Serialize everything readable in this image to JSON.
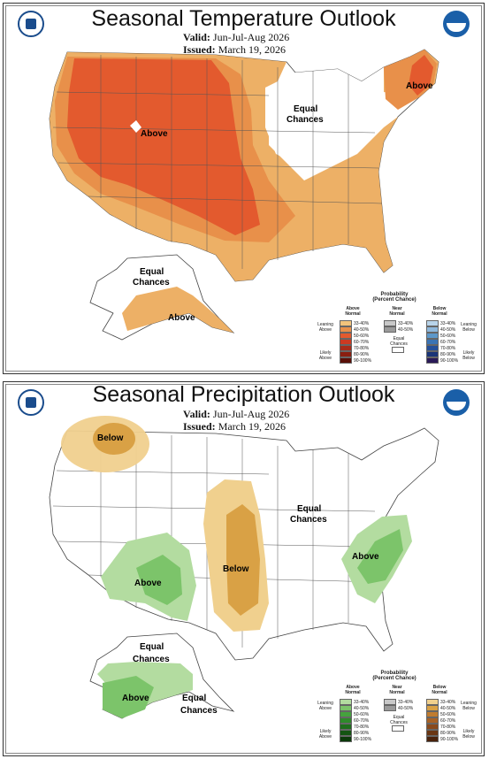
{
  "temperature": {
    "title": "Seasonal Temperature Outlook",
    "valid_label": "Valid:",
    "valid_value": "Jun-Jul-Aug 2026",
    "issued_label": "Issued:",
    "issued_value": "March 19, 2026",
    "labels": {
      "above_west": "Above",
      "above_ne": "Above",
      "above_alaska": "Above",
      "equal_east_1": "Equal",
      "equal_east_2": "Chances",
      "equal_alaska_1": "Equal",
      "equal_alaska_2": "Chances"
    },
    "legend": {
      "title_1": "Probability",
      "title_2": "(Percent Chance)",
      "col_above_1": "Above",
      "col_above_2": "Normal",
      "col_near_1": "Near",
      "col_near_2": "Normal",
      "col_below_1": "Below",
      "col_below_2": "Normal",
      "leaning_above_1": "Leaning",
      "leaning_above_2": "Above",
      "likely_above_1": "Likely",
      "likely_above_2": "Above",
      "leaning_below_1": "Leaning",
      "leaning_below_2": "Below",
      "likely_below_1": "Likely",
      "likely_below_2": "Below",
      "equal_1": "Equal",
      "equal_2": "Chances",
      "above_bins": [
        "33-40%",
        "40-50%",
        "50-60%",
        "60-70%",
        "70-80%",
        "80-90%",
        "90-100%"
      ],
      "near_bins": [
        "33-40%",
        "40-50%"
      ],
      "below_bins": [
        "33-40%",
        "40-50%",
        "50-60%",
        "60-70%",
        "70-80%",
        "80-90%",
        "90-100%"
      ],
      "above_colors": [
        "#f2c47c",
        "#e8904a",
        "#e35a2e",
        "#cc3a22",
        "#a82c1a",
        "#8a1e10",
        "#5a0f08"
      ],
      "near_colors": [
        "#c8c8c8",
        "#9a9a9a"
      ],
      "below_colors": [
        "#b8d4ea",
        "#8fb8dc",
        "#5d98ca",
        "#3b74b4",
        "#25509a",
        "#1a3478",
        "#2a1a58"
      ]
    }
  },
  "precipitation": {
    "title": "Seasonal Precipitation Outlook",
    "valid_label": "Valid:",
    "valid_value": "Jun-Jul-Aug 2026",
    "issued_label": "Issued:",
    "issued_value": "March 19, 2026",
    "labels": {
      "below_nw": "Below",
      "below_central": "Below",
      "above_sw": "Above",
      "above_se": "Above",
      "above_alaska": "Above",
      "equal_east_1": "Equal",
      "equal_east_2": "Chances",
      "equal_alaska_1": "Equal",
      "equal_alaska_2": "Chances",
      "equal_akse_1": "Equal",
      "equal_akse_2": "Chances"
    },
    "legend": {
      "title_1": "Probability",
      "title_2": "(Percent Chance)",
      "col_above_1": "Above",
      "col_above_2": "Normal",
      "col_near_1": "Near",
      "col_near_2": "Normal",
      "col_below_1": "Below",
      "col_below_2": "Normal",
      "leaning_above_1": "Leaning",
      "leaning_above_2": "Above",
      "likely_above_1": "Likely",
      "likely_above_2": "Above",
      "leaning_below_1": "Leaning",
      "leaning_below_2": "Below",
      "likely_below_1": "Likely",
      "likely_below_2": "Below",
      "equal_1": "Equal",
      "equal_2": "Chances",
      "above_bins": [
        "33-40%",
        "40-50%",
        "50-60%",
        "60-70%",
        "70-80%",
        "80-90%",
        "90-100%"
      ],
      "near_bins": [
        "33-40%",
        "40-50%"
      ],
      "below_bins": [
        "33-40%",
        "40-50%",
        "50-60%",
        "60-70%",
        "70-80%",
        "80-90%",
        "90-100%"
      ],
      "above_colors": [
        "#b3dca0",
        "#7cc46a",
        "#45a23d",
        "#2e8a2a",
        "#1e6e1c",
        "#145412",
        "#0c3a0a"
      ],
      "near_colors": [
        "#c8c8c8",
        "#9a9a9a"
      ],
      "below_colors": [
        "#f0d08e",
        "#d9a145",
        "#c07c30",
        "#a86226",
        "#8a4a1c",
        "#6a3614",
        "#4a220c"
      ]
    }
  },
  "colors": {
    "temp_above_lean": "#edb066",
    "temp_above_40": "#e8904a",
    "temp_above_50": "#e35a2e",
    "precip_below_lean": "#f0d08e",
    "precip_below_40": "#d9a145",
    "precip_above_lean": "#b3dca0",
    "precip_above_40": "#7cc46a"
  }
}
